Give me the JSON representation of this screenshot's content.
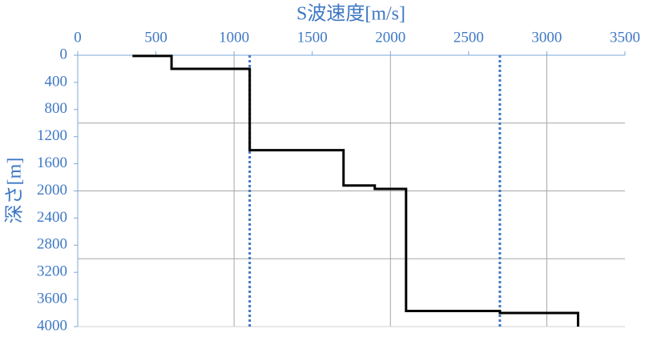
{
  "chart_data": {
    "type": "line",
    "x_label": "S波速度[m/s]",
    "y_label": "深さ[m]",
    "xlim": [
      0,
      3500
    ],
    "xticks": [
      0,
      500,
      1000,
      1500,
      2000,
      2500,
      3000,
      3500
    ],
    "ylim": [
      0,
      4000
    ],
    "yticks": [
      0,
      400,
      800,
      1200,
      1600,
      2000,
      2400,
      2800,
      3200,
      3600,
      4000
    ],
    "y_inverted": true,
    "xgrid": [
      1000,
      2000,
      3000
    ],
    "ygrid": [
      1000,
      2000,
      3000
    ],
    "series": [
      {
        "color": "#000000",
        "x": [
          350,
          600,
          600,
          1100,
          1100,
          1700,
          1700,
          1900,
          1900,
          2100,
          2100,
          2700,
          2700,
          3200,
          3200
        ],
        "y": [
          10,
          10,
          200,
          200,
          1400,
          1400,
          1920,
          1920,
          1970,
          1970,
          3770,
          3770,
          3800,
          3800,
          4000
        ]
      }
    ],
    "reference_lines": {
      "color": "#3f78c4",
      "x": [
        1100,
        2700
      ]
    }
  }
}
